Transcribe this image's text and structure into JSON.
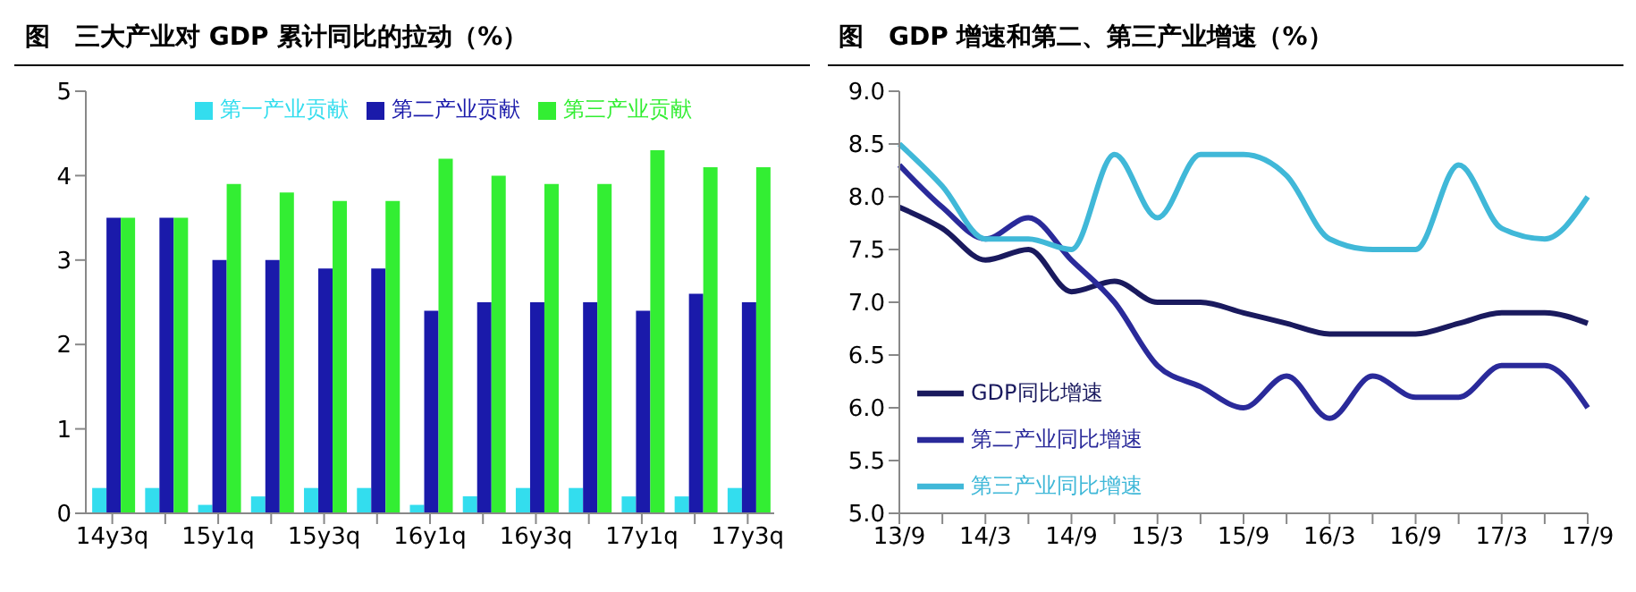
{
  "chart_data": [
    {
      "type": "bar",
      "title": "图　三大产业对 GDP 累计同比的拉动（%）",
      "categories": [
        "14y3q",
        null,
        "15y1q",
        null,
        "15y3q",
        null,
        "16y1q",
        null,
        "16y3q",
        null,
        "17y1q",
        null,
        "17y3q"
      ],
      "series": [
        {
          "name": "第一产业贡献",
          "color": "#33ddee",
          "values": [
            0.3,
            0.3,
            0.1,
            0.2,
            0.3,
            0.3,
            0.1,
            0.2,
            0.3,
            0.3,
            0.2,
            0.2,
            0.3
          ]
        },
        {
          "name": "第二产业贡献",
          "color": "#1a1aaa",
          "values": [
            3.5,
            3.5,
            3.0,
            3.0,
            2.9,
            2.9,
            2.4,
            2.5,
            2.5,
            2.5,
            2.4,
            2.6,
            2.5
          ]
        },
        {
          "name": "第三产业贡献",
          "color": "#33ee33",
          "values": [
            3.5,
            3.5,
            3.9,
            3.8,
            3.7,
            3.7,
            4.2,
            4.0,
            3.9,
            3.9,
            4.3,
            4.1,
            4.1
          ]
        }
      ],
      "ylim": [
        0,
        5
      ],
      "yticks": [
        0,
        1,
        2,
        3,
        4,
        5
      ],
      "grid": false,
      "legend": "top"
    },
    {
      "type": "line",
      "title": "图　GDP 增速和第二、第三产业增速（%）",
      "categories": [
        "13/9",
        null,
        "14/3",
        null,
        "14/9",
        null,
        "15/3",
        null,
        "15/9",
        null,
        "16/3",
        null,
        "16/9",
        null,
        "17/3",
        null,
        "17/9"
      ],
      "series": [
        {
          "name": "GDP同比增速",
          "color": "#1a1a5e",
          "values": [
            7.9,
            7.7,
            7.4,
            7.5,
            7.1,
            7.2,
            7.0,
            7.0,
            6.9,
            6.8,
            6.7,
            6.7,
            6.7,
            6.8,
            6.9,
            6.9,
            6.8
          ]
        },
        {
          "name": "第二产业同比增速",
          "color": "#2a2a9a",
          "values": [
            8.3,
            7.9,
            7.6,
            7.8,
            7.4,
            7.0,
            6.4,
            6.2,
            6.0,
            6.3,
            5.9,
            6.3,
            6.1,
            6.1,
            6.4,
            6.4,
            6.0
          ]
        },
        {
          "name": "第三产业同比增速",
          "color": "#40b8d8",
          "values": [
            8.5,
            8.1,
            7.6,
            7.6,
            7.5,
            8.4,
            7.8,
            8.4,
            8.4,
            8.2,
            7.6,
            7.5,
            7.5,
            8.3,
            7.7,
            7.6,
            8.0
          ]
        }
      ],
      "ylim": [
        5,
        9
      ],
      "yticks": [
        {
          "value": 5,
          "label": "5.0"
        },
        {
          "value": 5.5,
          "label": "5.5"
        },
        {
          "value": 6,
          "label": "6.0"
        },
        {
          "value": 6.5,
          "label": "6.5"
        },
        {
          "value": 7,
          "label": "7.0"
        },
        {
          "value": 7.5,
          "label": "7.5"
        },
        {
          "value": 8,
          "label": "8.0"
        },
        {
          "value": 8.5,
          "label": "8.5"
        },
        {
          "value": 9,
          "label": "9.0"
        }
      ],
      "grid": false,
      "legend": "bottom left",
      "marker": "none",
      "line_style": "solid"
    }
  ]
}
